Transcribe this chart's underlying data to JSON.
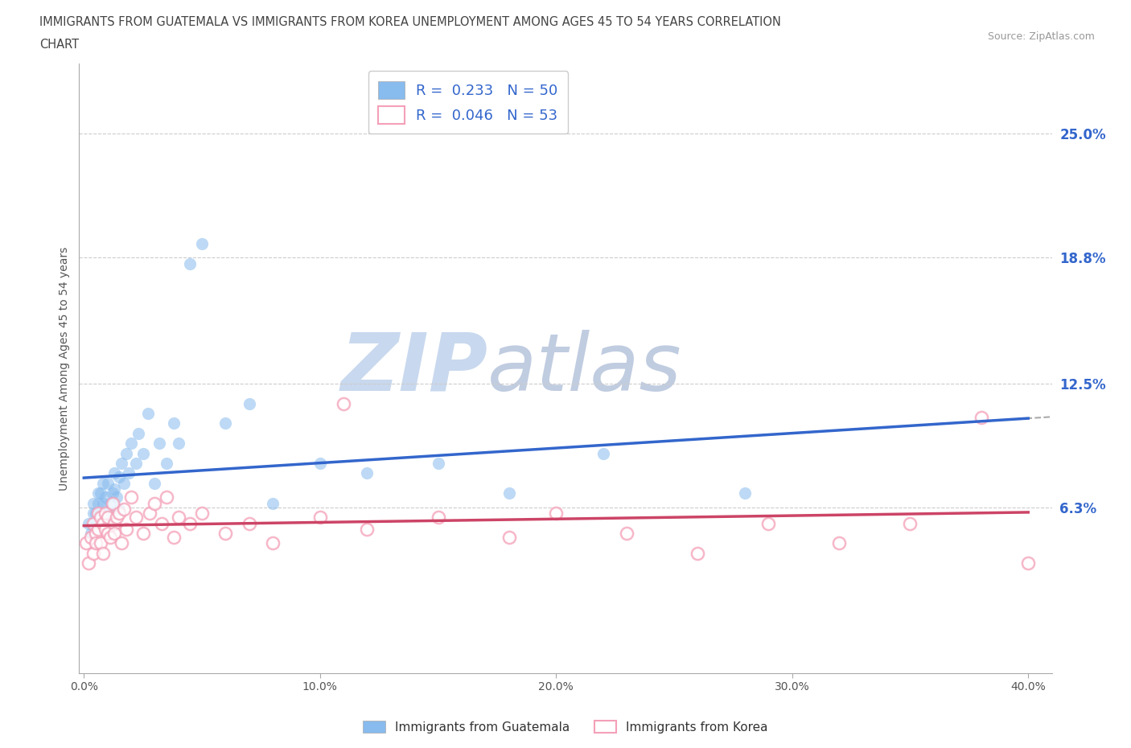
{
  "title_line1": "IMMIGRANTS FROM GUATEMALA VS IMMIGRANTS FROM KOREA UNEMPLOYMENT AMONG AGES 45 TO 54 YEARS CORRELATION",
  "title_line2": "CHART",
  "source": "Source: ZipAtlas.com",
  "ylabel": "Unemployment Among Ages 45 to 54 years",
  "xlim": [
    -0.002,
    0.41
  ],
  "ylim": [
    -0.02,
    0.285
  ],
  "xtick_labels": [
    "0.0%",
    "10.0%",
    "20.0%",
    "30.0%",
    "40.0%"
  ],
  "xtick_values": [
    0.0,
    0.1,
    0.2,
    0.3,
    0.4
  ],
  "ytick_labels": [
    "6.3%",
    "12.5%",
    "18.8%",
    "25.0%"
  ],
  "ytick_values": [
    0.063,
    0.125,
    0.188,
    0.25
  ],
  "guatemala_color": "#88bbee",
  "korea_color": "#f4a0b8",
  "guatemala_R": 0.233,
  "guatemala_N": 50,
  "korea_R": 0.046,
  "korea_N": 53,
  "watermark_zip": "ZIP",
  "watermark_atlas": "atlas",
  "watermark_color_zip": "#c8d8ee",
  "watermark_color_atlas": "#c0cce0",
  "grid_color": "#cccccc",
  "background_color": "#ffffff",
  "trendline_guatemala_color": "#3366cc",
  "trendline_korea_color": "#cc4466",
  "trendline_dashed_color": "#aaaaaa",
  "guatemala_x": [
    0.002,
    0.003,
    0.004,
    0.004,
    0.005,
    0.005,
    0.006,
    0.006,
    0.007,
    0.007,
    0.008,
    0.008,
    0.008,
    0.009,
    0.009,
    0.01,
    0.01,
    0.011,
    0.012,
    0.012,
    0.013,
    0.013,
    0.014,
    0.015,
    0.015,
    0.016,
    0.017,
    0.018,
    0.019,
    0.02,
    0.022,
    0.023,
    0.025,
    0.027,
    0.03,
    0.032,
    0.035,
    0.038,
    0.04,
    0.045,
    0.05,
    0.06,
    0.07,
    0.08,
    0.1,
    0.12,
    0.15,
    0.18,
    0.22,
    0.28
  ],
  "guatemala_y": [
    0.055,
    0.05,
    0.06,
    0.065,
    0.055,
    0.06,
    0.07,
    0.065,
    0.06,
    0.07,
    0.058,
    0.065,
    0.075,
    0.06,
    0.068,
    0.055,
    0.075,
    0.065,
    0.07,
    0.06,
    0.072,
    0.08,
    0.068,
    0.062,
    0.078,
    0.085,
    0.075,
    0.09,
    0.08,
    0.095,
    0.085,
    0.1,
    0.09,
    0.11,
    0.075,
    0.095,
    0.085,
    0.105,
    0.095,
    0.185,
    0.195,
    0.105,
    0.115,
    0.065,
    0.085,
    0.08,
    0.085,
    0.07,
    0.09,
    0.07
  ],
  "korea_x": [
    0.001,
    0.002,
    0.003,
    0.004,
    0.004,
    0.005,
    0.005,
    0.006,
    0.006,
    0.007,
    0.007,
    0.008,
    0.008,
    0.009,
    0.009,
    0.01,
    0.01,
    0.011,
    0.012,
    0.013,
    0.013,
    0.014,
    0.015,
    0.016,
    0.017,
    0.018,
    0.02,
    0.022,
    0.025,
    0.028,
    0.03,
    0.033,
    0.035,
    0.038,
    0.04,
    0.045,
    0.05,
    0.06,
    0.07,
    0.08,
    0.1,
    0.12,
    0.15,
    0.18,
    0.2,
    0.23,
    0.26,
    0.29,
    0.32,
    0.35,
    0.38,
    0.4,
    0.11
  ],
  "korea_y": [
    0.045,
    0.035,
    0.048,
    0.055,
    0.04,
    0.05,
    0.045,
    0.06,
    0.052,
    0.045,
    0.058,
    0.055,
    0.04,
    0.052,
    0.06,
    0.05,
    0.058,
    0.048,
    0.065,
    0.055,
    0.05,
    0.058,
    0.06,
    0.045,
    0.062,
    0.052,
    0.068,
    0.058,
    0.05,
    0.06,
    0.065,
    0.055,
    0.068,
    0.048,
    0.058,
    0.055,
    0.06,
    0.05,
    0.055,
    0.045,
    0.058,
    0.052,
    0.058,
    0.048,
    0.06,
    0.05,
    0.04,
    0.055,
    0.045,
    0.055,
    0.108,
    0.035,
    0.115
  ]
}
